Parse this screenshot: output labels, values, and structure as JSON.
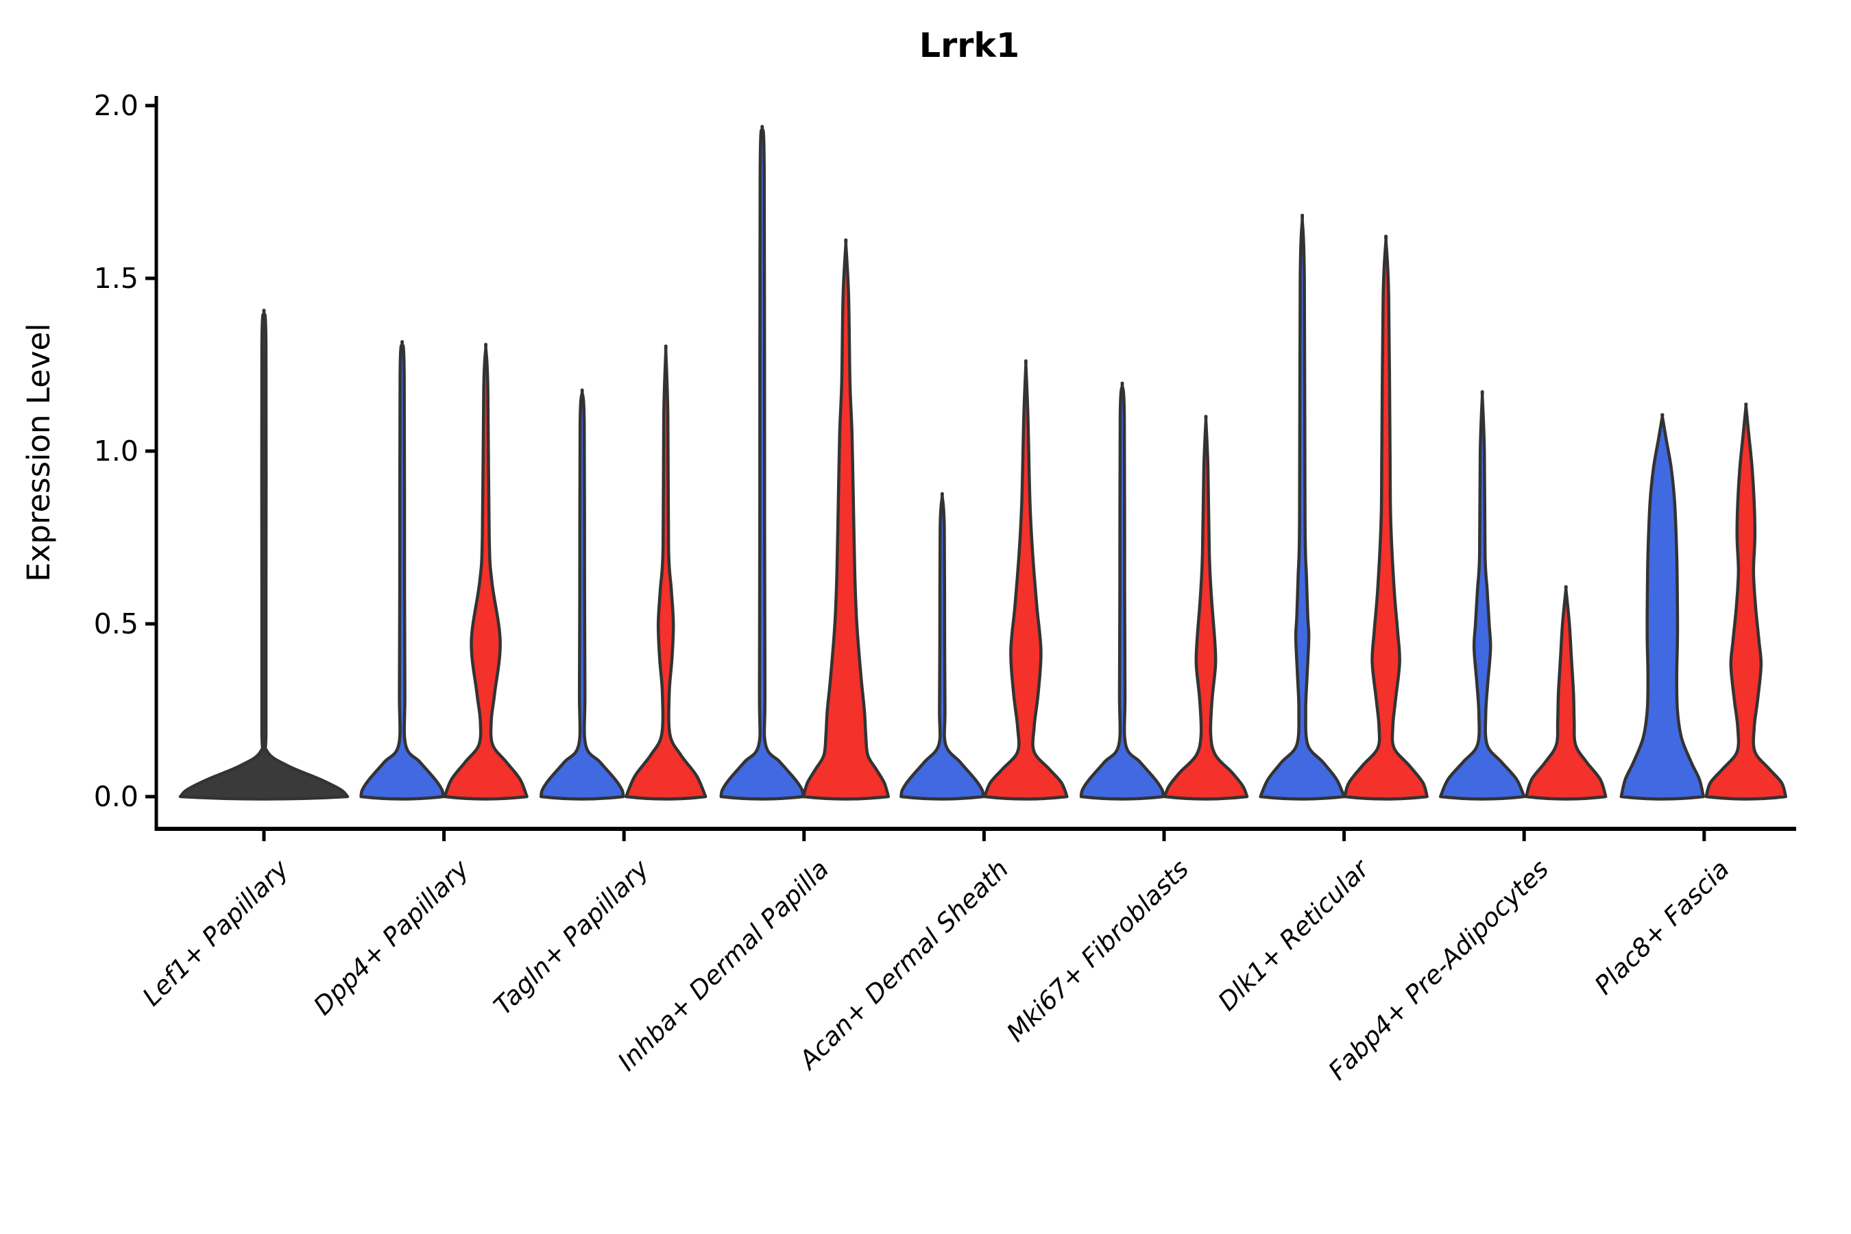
{
  "chart_data": {
    "type": "violin",
    "title": "Lrrk1",
    "ylabel": "Expression Level",
    "xlabel": "",
    "ylim": [
      0,
      2.0
    ],
    "y_tick_labels": [
      "2.0",
      "1.5",
      "1.0",
      "0.5",
      "0.0"
    ],
    "y_tick_values": [
      2.0,
      1.5,
      1.0,
      0.5,
      0.0
    ],
    "grid": false,
    "legend": "none",
    "categories": [
      "Lef1+ Papillary",
      "Dpp4+ Papillary",
      "Tagln+ Papillary",
      "Inhba+ Dermal Papilla",
      "Acan+ Dermal Sheath",
      "Mki67+ Fibroblasts",
      "Dlk1+ Reticular",
      "Fabp4+ Pre-Adipocytes",
      "Plac8+ Fascia"
    ],
    "groups": [
      {
        "name": "group_blue",
        "color": "#4169E1"
      },
      {
        "name": "group_red",
        "color": "#F4312A"
      }
    ],
    "edge_color": "#333333",
    "violins": [
      {
        "category_index": 0,
        "group": "single",
        "color": "#3a3a3a",
        "max_expression": 1.4,
        "profile": [
          [
            1.4,
            0
          ],
          [
            1.3,
            3
          ],
          [
            0.6,
            3
          ],
          [
            0.2,
            3
          ],
          [
            0.13,
            5
          ],
          [
            0.09,
            34
          ],
          [
            0.05,
            82
          ],
          [
            0.02,
            112
          ],
          [
            0,
            122
          ]
        ]
      },
      {
        "category_index": 1,
        "group": "group_blue",
        "color": "#4169E1",
        "max_expression": 1.31,
        "profile": [
          [
            1.31,
            0
          ],
          [
            1.22,
            3
          ],
          [
            0.6,
            3.5
          ],
          [
            0.3,
            4
          ],
          [
            0.15,
            5
          ],
          [
            0.1,
            26
          ],
          [
            0.05,
            48
          ],
          [
            0.02,
            58
          ],
          [
            0,
            60
          ]
        ]
      },
      {
        "category_index": 1,
        "group": "group_red",
        "color": "#F4312A",
        "max_expression": 1.3,
        "profile": [
          [
            1.3,
            0
          ],
          [
            1.18,
            3
          ],
          [
            0.75,
            5
          ],
          [
            0.62,
            9
          ],
          [
            0.45,
            21
          ],
          [
            0.3,
            13
          ],
          [
            0.22,
            8
          ],
          [
            0.15,
            10
          ],
          [
            0.1,
            30
          ],
          [
            0.05,
            50
          ],
          [
            0,
            60
          ]
        ]
      },
      {
        "category_index": 2,
        "group": "group_blue",
        "color": "#4169E1",
        "max_expression": 1.17,
        "profile": [
          [
            1.17,
            0
          ],
          [
            1.08,
            3
          ],
          [
            0.6,
            3.5
          ],
          [
            0.3,
            4
          ],
          [
            0.15,
            5
          ],
          [
            0.1,
            26
          ],
          [
            0.05,
            48
          ],
          [
            0.02,
            58
          ],
          [
            0,
            60
          ]
        ]
      },
      {
        "category_index": 2,
        "group": "group_red",
        "color": "#F4312A",
        "max_expression": 1.29,
        "profile": [
          [
            1.29,
            0
          ],
          [
            1.1,
            3
          ],
          [
            0.72,
            4
          ],
          [
            0.6,
            8
          ],
          [
            0.5,
            11
          ],
          [
            0.4,
            9
          ],
          [
            0.3,
            5
          ],
          [
            0.18,
            6
          ],
          [
            0.12,
            22
          ],
          [
            0.06,
            45
          ],
          [
            0,
            58
          ]
        ]
      },
      {
        "category_index": 3,
        "group": "group_blue",
        "color": "#4169E1",
        "max_expression": 1.93,
        "profile": [
          [
            1.93,
            0
          ],
          [
            1.8,
            3
          ],
          [
            0.8,
            3.5
          ],
          [
            0.3,
            4
          ],
          [
            0.15,
            5
          ],
          [
            0.1,
            26
          ],
          [
            0.05,
            48
          ],
          [
            0.02,
            58
          ],
          [
            0,
            60
          ]
        ]
      },
      {
        "category_index": 3,
        "group": "group_red",
        "color": "#F4312A",
        "max_expression": 1.6,
        "profile": [
          [
            1.6,
            0
          ],
          [
            1.45,
            4
          ],
          [
            1.2,
            6
          ],
          [
            1.05,
            9
          ],
          [
            0.85,
            11
          ],
          [
            0.65,
            13
          ],
          [
            0.5,
            16
          ],
          [
            0.35,
            22
          ],
          [
            0.25,
            27
          ],
          [
            0.18,
            29
          ],
          [
            0.12,
            32
          ],
          [
            0.08,
            44
          ],
          [
            0.04,
            56
          ],
          [
            0,
            62
          ]
        ]
      },
      {
        "category_index": 4,
        "group": "group_blue",
        "color": "#4169E1",
        "max_expression": 0.87,
        "profile": [
          [
            0.87,
            0
          ],
          [
            0.78,
            3
          ],
          [
            0.45,
            3.5
          ],
          [
            0.25,
            4
          ],
          [
            0.15,
            5
          ],
          [
            0.1,
            26
          ],
          [
            0.05,
            48
          ],
          [
            0.02,
            58
          ],
          [
            0,
            60
          ]
        ]
      },
      {
        "category_index": 4,
        "group": "group_red",
        "color": "#F4312A",
        "max_expression": 1.25,
        "profile": [
          [
            1.25,
            0
          ],
          [
            1.1,
            3
          ],
          [
            0.85,
            6
          ],
          [
            0.7,
            10
          ],
          [
            0.55,
            16
          ],
          [
            0.42,
            22
          ],
          [
            0.3,
            18
          ],
          [
            0.2,
            12
          ],
          [
            0.13,
            12
          ],
          [
            0.08,
            34
          ],
          [
            0.04,
            52
          ],
          [
            0,
            60
          ]
        ]
      },
      {
        "category_index": 5,
        "group": "group_blue",
        "color": "#4169E1",
        "max_expression": 1.19,
        "profile": [
          [
            1.19,
            0
          ],
          [
            1.1,
            3
          ],
          [
            0.6,
            3.5
          ],
          [
            0.3,
            4
          ],
          [
            0.15,
            5
          ],
          [
            0.1,
            26
          ],
          [
            0.05,
            48
          ],
          [
            0.02,
            58
          ],
          [
            0,
            60
          ]
        ]
      },
      {
        "category_index": 5,
        "group": "group_red",
        "color": "#F4312A",
        "max_expression": 1.09,
        "profile": [
          [
            1.09,
            0
          ],
          [
            0.95,
            3
          ],
          [
            0.7,
            5
          ],
          [
            0.58,
            8
          ],
          [
            0.45,
            13
          ],
          [
            0.38,
            14
          ],
          [
            0.28,
            9
          ],
          [
            0.18,
            7
          ],
          [
            0.12,
            14
          ],
          [
            0.07,
            38
          ],
          [
            0.03,
            54
          ],
          [
            0,
            60
          ]
        ]
      },
      {
        "category_index": 6,
        "group": "group_blue",
        "color": "#4169E1",
        "max_expression": 1.67,
        "profile": [
          [
            1.67,
            0
          ],
          [
            1.5,
            3
          ],
          [
            0.8,
            4
          ],
          [
            0.64,
            6
          ],
          [
            0.52,
            8
          ],
          [
            0.46,
            9.5
          ],
          [
            0.35,
            7
          ],
          [
            0.25,
            5
          ],
          [
            0.15,
            8
          ],
          [
            0.1,
            30
          ],
          [
            0.05,
            50
          ],
          [
            0,
            61
          ]
        ]
      },
      {
        "category_index": 6,
        "group": "group_red",
        "color": "#F4312A",
        "max_expression": 1.61,
        "profile": [
          [
            1.61,
            0
          ],
          [
            1.45,
            4
          ],
          [
            1.0,
            6
          ],
          [
            0.8,
            7
          ],
          [
            0.6,
            12
          ],
          [
            0.48,
            17
          ],
          [
            0.39,
            20
          ],
          [
            0.28,
            14
          ],
          [
            0.2,
            10
          ],
          [
            0.14,
            12
          ],
          [
            0.09,
            34
          ],
          [
            0.04,
            54
          ],
          [
            0,
            60
          ]
        ]
      },
      {
        "category_index": 7,
        "group": "group_blue",
        "color": "#4169E1",
        "max_expression": 1.16,
        "profile": [
          [
            1.16,
            0
          ],
          [
            1.0,
            3
          ],
          [
            0.7,
            4
          ],
          [
            0.6,
            7
          ],
          [
            0.5,
            10
          ],
          [
            0.43,
            12
          ],
          [
            0.33,
            8
          ],
          [
            0.24,
            5
          ],
          [
            0.15,
            7
          ],
          [
            0.1,
            28
          ],
          [
            0.05,
            50
          ],
          [
            0,
            61
          ]
        ]
      },
      {
        "category_index": 7,
        "group": "group_red",
        "color": "#F4312A",
        "max_expression": 0.6,
        "profile": [
          [
            0.6,
            0
          ],
          [
            0.5,
            5
          ],
          [
            0.4,
            8
          ],
          [
            0.3,
            11
          ],
          [
            0.22,
            12
          ],
          [
            0.15,
            14
          ],
          [
            0.1,
            30
          ],
          [
            0.05,
            50
          ],
          [
            0,
            58
          ]
        ]
      },
      {
        "category_index": 8,
        "group": "group_blue",
        "color": "#4169E1",
        "max_expression": 1.1,
        "profile": [
          [
            1.1,
            0
          ],
          [
            1.03,
            6
          ],
          [
            0.95,
            13
          ],
          [
            0.85,
            18
          ],
          [
            0.7,
            21
          ],
          [
            0.55,
            22
          ],
          [
            0.45,
            22
          ],
          [
            0.35,
            21
          ],
          [
            0.25,
            22
          ],
          [
            0.17,
            28
          ],
          [
            0.1,
            42
          ],
          [
            0.05,
            54
          ],
          [
            0,
            60
          ]
        ]
      },
      {
        "category_index": 8,
        "group": "group_red",
        "color": "#F4312A",
        "max_expression": 1.13,
        "profile": [
          [
            1.13,
            0
          ],
          [
            1.05,
            4
          ],
          [
            0.95,
            9
          ],
          [
            0.85,
            12
          ],
          [
            0.75,
            13
          ],
          [
            0.65,
            11
          ],
          [
            0.55,
            14
          ],
          [
            0.45,
            19
          ],
          [
            0.38,
            22
          ],
          [
            0.28,
            17
          ],
          [
            0.2,
            12
          ],
          [
            0.13,
            13
          ],
          [
            0.08,
            34
          ],
          [
            0.04,
            52
          ],
          [
            0,
            58
          ]
        ]
      }
    ]
  }
}
